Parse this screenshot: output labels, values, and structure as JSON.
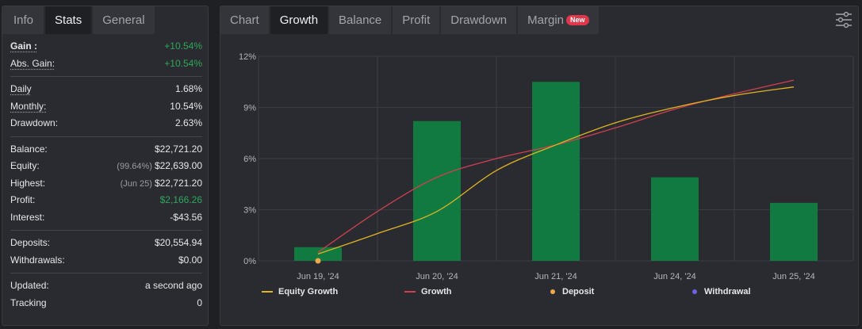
{
  "left": {
    "tabs": [
      {
        "label": "Info",
        "active": false
      },
      {
        "label": "Stats",
        "active": true
      },
      {
        "label": "General",
        "active": false
      }
    ],
    "gain": {
      "label": "Gain :",
      "value": "+10.54%"
    },
    "abs_gain": {
      "label": "Abs. Gain:",
      "value": "+10.54%"
    },
    "daily": {
      "label": "Daily",
      "value": "1.68%"
    },
    "monthly": {
      "label": "Monthly:",
      "value": "10.54%"
    },
    "drawdown": {
      "label": "Drawdown:",
      "value": "2.63%"
    },
    "balance": {
      "label": "Balance:",
      "value": "$22,721.20"
    },
    "equity": {
      "label": "Equity:",
      "sub": "(99.64%)",
      "value": "$22,639.00"
    },
    "highest": {
      "label": "Highest:",
      "sub": "(Jun 25)",
      "value": "$22,721.20"
    },
    "profit": {
      "label": "Profit:",
      "value": "$2,166.26"
    },
    "interest": {
      "label": "Interest:",
      "value": "-$43.56"
    },
    "deposits": {
      "label": "Deposits:",
      "value": "$20,554.94"
    },
    "withdrawals": {
      "label": "Withdrawals:",
      "value": "$0.00"
    },
    "updated": {
      "label": "Updated:",
      "value": "a second ago"
    },
    "tracking": {
      "label": "Tracking",
      "value": "0"
    }
  },
  "right": {
    "tabs": [
      {
        "label": "Chart",
        "active": false
      },
      {
        "label": "Growth",
        "active": true
      },
      {
        "label": "Balance",
        "active": false
      },
      {
        "label": "Profit",
        "active": false
      },
      {
        "label": "Drawdown",
        "active": false
      },
      {
        "label": "Margin",
        "active": false
      }
    ],
    "margin_badge": "New",
    "settings_icon": "sliders-icon"
  },
  "colors": {
    "bar": "#117a40",
    "equity_line": "#e0b422",
    "growth_line": "#d0404e",
    "deposit": "#f0a94a",
    "withdrawal": "#6b63e0",
    "positive": "#2ea85a"
  },
  "chart_data": {
    "type": "bar",
    "categories": [
      "Jun 19, '24",
      "Jun 20, '24",
      "Jun 21, '24",
      "Jun 24, '24",
      "Jun 25, '24"
    ],
    "yticks": [
      "0%",
      "3%",
      "6%",
      "9%",
      "12%"
    ],
    "ylim": [
      0,
      12
    ],
    "grid": true,
    "legend_position": "bottom",
    "series": [
      {
        "name": "Growth",
        "type": "bar",
        "values": [
          0.8,
          8.2,
          10.5,
          4.9,
          3.4
        ]
      },
      {
        "name": "Equity Growth",
        "type": "line",
        "points": [
          [
            0,
            0.4
          ],
          [
            0.5,
            1.6
          ],
          [
            1,
            2.9
          ],
          [
            1.5,
            5.3
          ],
          [
            2,
            6.8
          ],
          [
            2.5,
            8.1
          ],
          [
            3,
            9.0
          ],
          [
            3.5,
            9.7
          ],
          [
            4,
            10.2
          ]
        ]
      },
      {
        "name": "Growth",
        "type": "line",
        "points": [
          [
            0,
            0.5
          ],
          [
            0.5,
            2.9
          ],
          [
            1,
            4.9
          ],
          [
            1.5,
            6.0
          ],
          [
            2,
            6.8
          ],
          [
            2.5,
            7.8
          ],
          [
            3,
            8.9
          ],
          [
            3.5,
            9.8
          ],
          [
            4,
            10.6
          ]
        ]
      }
    ],
    "markers": [
      {
        "name": "Deposit",
        "x": 0,
        "y": 0
      }
    ],
    "legend": [
      "Equity Growth",
      "Growth",
      "Deposit",
      "Withdrawal"
    ]
  }
}
